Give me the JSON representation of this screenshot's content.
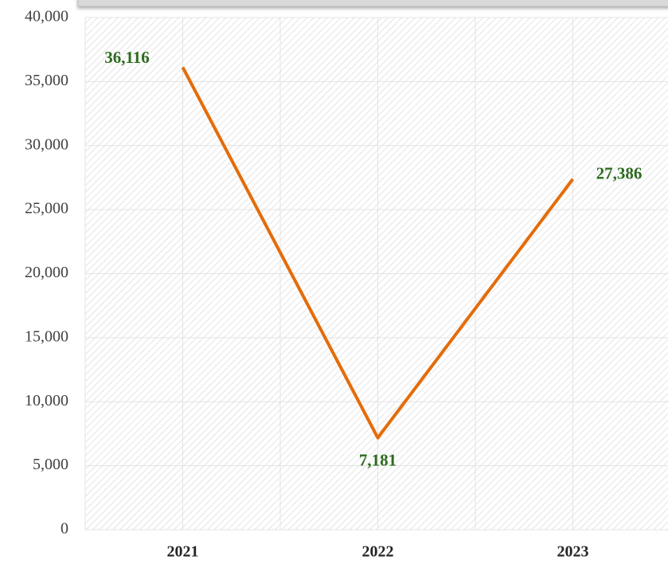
{
  "chart_data": {
    "type": "line",
    "categories": [
      "2021",
      "2022",
      "2023"
    ],
    "series": [
      {
        "color": "#e46c0a",
        "values": [
          36116,
          7181,
          27386
        ],
        "value_labels": [
          "36,116",
          "7,181",
          "27,386"
        ]
      }
    ],
    "ylim": [
      0,
      40000
    ],
    "yticks": [
      0,
      {
        "value": 5000,
        "label": "5,000"
      },
      {
        "value": 10000,
        "label": "10,000"
      },
      {
        "value": 15000,
        "label": "15,000"
      },
      {
        "value": 20000,
        "label": "20,000"
      },
      {
        "value": 25000,
        "label": "25,000"
      },
      {
        "value": 30000,
        "label": "30,000"
      },
      {
        "value": 35000,
        "label": "35,000"
      },
      {
        "value": 40000,
        "label": "40,000"
      }
    ],
    "grid": true
  }
}
